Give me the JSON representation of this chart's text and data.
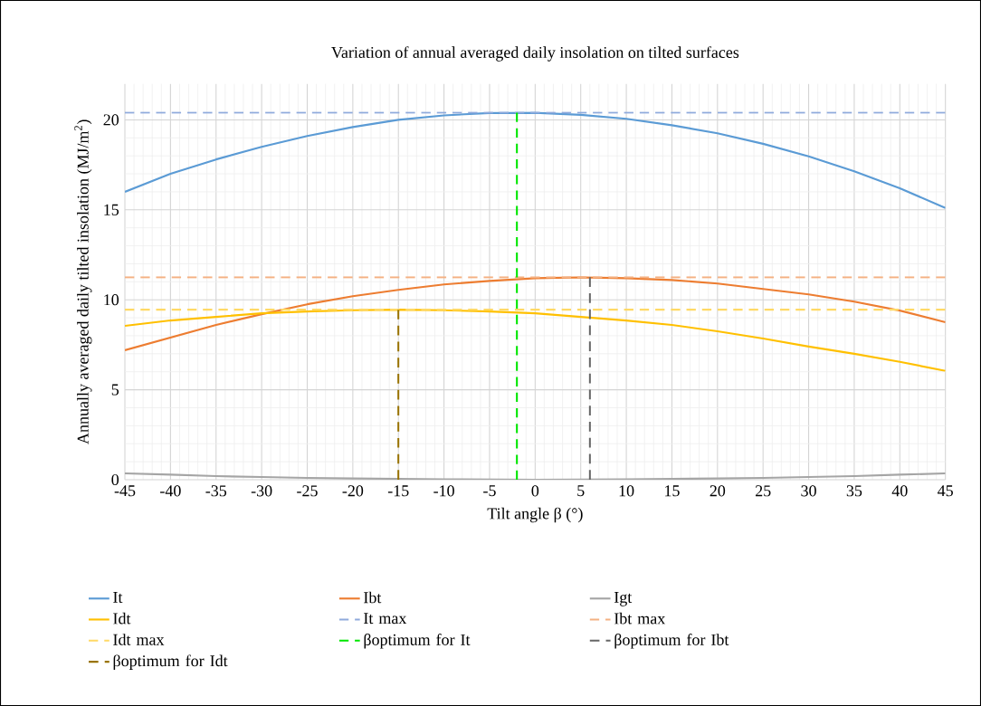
{
  "chart_data": {
    "type": "line",
    "title": "Variation of annual averaged daily insolation on tilted surfaces",
    "xlabel": "Tilt angle β (°)",
    "ylabel": "Annually averaged daily tilted insolation (MJ/m$^{2}$)",
    "x": [
      -45,
      -40,
      -35,
      -30,
      -25,
      -20,
      -15,
      -10,
      -5,
      0,
      5,
      10,
      15,
      20,
      25,
      30,
      35,
      40,
      45
    ],
    "series": [
      {
        "name": "It",
        "color": "#5b9bd5",
        "line_style": "solid",
        "values": [
          16.0,
          17.0,
          17.8,
          18.5,
          19.1,
          19.6,
          20.0,
          20.25,
          20.38,
          20.39,
          20.28,
          20.06,
          19.7,
          19.25,
          18.67,
          17.97,
          17.14,
          16.2,
          15.1
        ]
      },
      {
        "name": "Ibt",
        "color": "#ed7d31",
        "line_style": "solid",
        "values": [
          7.2,
          7.9,
          8.6,
          9.2,
          9.75,
          10.2,
          10.55,
          10.85,
          11.05,
          11.2,
          11.25,
          11.2,
          11.1,
          10.9,
          10.6,
          10.3,
          9.9,
          9.4,
          8.75
        ]
      },
      {
        "name": "Igt",
        "color": "#a5a5a5",
        "line_style": "solid",
        "values": [
          0.35,
          0.28,
          0.2,
          0.15,
          0.1,
          0.07,
          0.05,
          0.02,
          0.01,
          0.0,
          0.01,
          0.02,
          0.05,
          0.07,
          0.1,
          0.15,
          0.2,
          0.28,
          0.35
        ]
      },
      {
        "name": "Idt",
        "color": "#ffc000",
        "line_style": "solid",
        "values": [
          8.55,
          8.85,
          9.05,
          9.25,
          9.35,
          9.42,
          9.45,
          9.42,
          9.35,
          9.25,
          9.05,
          8.85,
          8.6,
          8.25,
          7.85,
          7.4,
          7.0,
          6.55,
          6.05
        ]
      },
      {
        "name": "It max",
        "color": "#8faadc",
        "line_style": "dashed",
        "x": [
          -45,
          45
        ],
        "values": [
          20.4,
          20.4
        ]
      },
      {
        "name": "Ibt max",
        "color": "#f4b183",
        "line_style": "dashed",
        "x": [
          -45,
          45
        ],
        "values": [
          11.25,
          11.25
        ]
      },
      {
        "name": "Idt max",
        "color": "#ffd966",
        "line_style": "dashed",
        "x": [
          -45,
          45
        ],
        "values": [
          9.45,
          9.45
        ]
      },
      {
        "name": "βoptimum for It",
        "color": "#00e600",
        "line_style": "dashed",
        "x": [
          -2,
          -2
        ],
        "values": [
          0,
          20.4
        ]
      },
      {
        "name": "βoptimum for Ibt",
        "color": "#666666",
        "line_style": "dashed",
        "x": [
          6,
          6
        ],
        "values": [
          0,
          11.25
        ]
      },
      {
        "name": "βoptimum for Idt",
        "color": "#997300",
        "line_style": "dashed",
        "x": [
          -15,
          -15
        ],
        "values": [
          0,
          9.45
        ]
      }
    ],
    "xlim": [
      -45,
      45
    ],
    "ylim": [
      0,
      22
    ],
    "xticks": [
      -45,
      -40,
      -35,
      -30,
      -25,
      -20,
      -15,
      -10,
      -5,
      0,
      5,
      10,
      15,
      20,
      25,
      30,
      35,
      40,
      45
    ],
    "yticks": [
      0,
      5,
      10,
      15,
      20
    ],
    "grid": true,
    "legend": "bottom"
  }
}
